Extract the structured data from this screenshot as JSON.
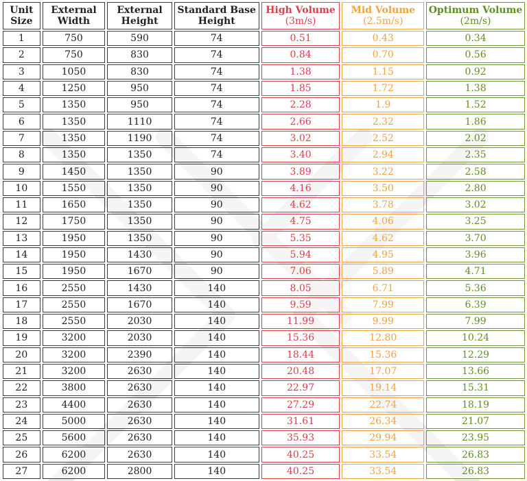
{
  "headers": {
    "unit_size": [
      "Unit",
      "Size"
    ],
    "external_width": [
      "External",
      "Width"
    ],
    "external_height": [
      "External",
      "Height"
    ],
    "standard_base_height": [
      "Standard Base",
      "Height"
    ],
    "high_volume": [
      "High Volume",
      "(3m/s)"
    ],
    "mid_volume": [
      "Mid Volume",
      "(2.5m/s)"
    ],
    "optimum_volume": [
      "Optimum Volume",
      "(2m/s)"
    ]
  },
  "colors": {
    "high_volume": "#d8404a",
    "mid_volume": "#f0a245",
    "optimum_volume": "#5e8f22",
    "border": "#3a3a3a",
    "watermark": "#e4e4e4"
  },
  "rows": [
    {
      "unit": "1",
      "width": "750",
      "height": "590",
      "base": "74",
      "high": "0.51",
      "mid": "0.43",
      "opt": "0.34"
    },
    {
      "unit": "2",
      "width": "750",
      "height": "830",
      "base": "74",
      "high": "0.84",
      "mid": "0.70",
      "opt": "0.56"
    },
    {
      "unit": "3",
      "width": "1050",
      "height": "830",
      "base": "74",
      "high": "1.38",
      "mid": "1.15",
      "opt": "0.92"
    },
    {
      "unit": "4",
      "width": "1250",
      "height": "950",
      "base": "74",
      "high": "1.85",
      "mid": "1.72",
      "opt": "1.38"
    },
    {
      "unit": "5",
      "width": "1350",
      "height": "950",
      "base": "74",
      "high": "2.28",
      "mid": "1.9",
      "opt": "1.52"
    },
    {
      "unit": "6",
      "width": "1350",
      "height": "1110",
      "base": "74",
      "high": "2.66",
      "mid": "2.32",
      "opt": "1.86"
    },
    {
      "unit": "7",
      "width": "1350",
      "height": "1190",
      "base": "74",
      "high": "3.02",
      "mid": "2.52",
      "opt": "2.02"
    },
    {
      "unit": "8",
      "width": "1350",
      "height": "1350",
      "base": "74",
      "high": "3.40",
      "mid": "2.94",
      "opt": "2.35"
    },
    {
      "unit": "9",
      "width": "1450",
      "height": "1350",
      "base": "90",
      "high": "3.89",
      "mid": "3.22",
      "opt": "2.58"
    },
    {
      "unit": "10",
      "width": "1550",
      "height": "1350",
      "base": "90",
      "high": "4.16",
      "mid": "3.50",
      "opt": "2.80"
    },
    {
      "unit": "11",
      "width": "1650",
      "height": "1350",
      "base": "90",
      "high": "4.62",
      "mid": "3.78",
      "opt": "3.02"
    },
    {
      "unit": "12",
      "width": "1750",
      "height": "1350",
      "base": "90",
      "high": "4.75",
      "mid": "4.06",
      "opt": "3.25"
    },
    {
      "unit": "13",
      "width": "1950",
      "height": "1350",
      "base": "90",
      "high": "5.35",
      "mid": "4.62",
      "opt": "3.70"
    },
    {
      "unit": "14",
      "width": "1950",
      "height": "1430",
      "base": "90",
      "high": "5.94",
      "mid": "4.95",
      "opt": "3.96"
    },
    {
      "unit": "15",
      "width": "1950",
      "height": "1670",
      "base": "90",
      "high": "7.06",
      "mid": "5.89",
      "opt": "4.71"
    },
    {
      "unit": "16",
      "width": "2550",
      "height": "1430",
      "base": "140",
      "high": "8.05",
      "mid": "6.71",
      "opt": "5.36"
    },
    {
      "unit": "17",
      "width": "2550",
      "height": "1670",
      "base": "140",
      "high": "9.59",
      "mid": "7.99",
      "opt": "6.39"
    },
    {
      "unit": "18",
      "width": "2550",
      "height": "2030",
      "base": "140",
      "high": "11.99",
      "mid": "9.99",
      "opt": "7.99"
    },
    {
      "unit": "19",
      "width": "3200",
      "height": "2030",
      "base": "140",
      "high": "15.36",
      "mid": "12.80",
      "opt": "10.24"
    },
    {
      "unit": "20",
      "width": "3200",
      "height": "2390",
      "base": "140",
      "high": "18.44",
      "mid": "15.36",
      "opt": "12.29"
    },
    {
      "unit": "21",
      "width": "3200",
      "height": "2630",
      "base": "140",
      "high": "20.48",
      "mid": "17.07",
      "opt": "13.66"
    },
    {
      "unit": "22",
      "width": "3800",
      "height": "2630",
      "base": "140",
      "high": "22.97",
      "mid": "19.14",
      "opt": "15.31"
    },
    {
      "unit": "23",
      "width": "4400",
      "height": "2630",
      "base": "140",
      "high": "27.29",
      "mid": "22.74",
      "opt": "18.19"
    },
    {
      "unit": "24",
      "width": "5000",
      "height": "2630",
      "base": "140",
      "high": "31.61",
      "mid": "26.34",
      "opt": "21.07"
    },
    {
      "unit": "25",
      "width": "5600",
      "height": "2630",
      "base": "140",
      "high": "35.93",
      "mid": "29.94",
      "opt": "23.95"
    },
    {
      "unit": "26",
      "width": "6200",
      "height": "2630",
      "base": "140",
      "high": "40.25",
      "mid": "33.54",
      "opt": "26.83"
    },
    {
      "unit": "27",
      "width": "6200",
      "height": "2800",
      "base": "140",
      "high": "40.25",
      "mid": "33.54",
      "opt": "26.83"
    }
  ]
}
